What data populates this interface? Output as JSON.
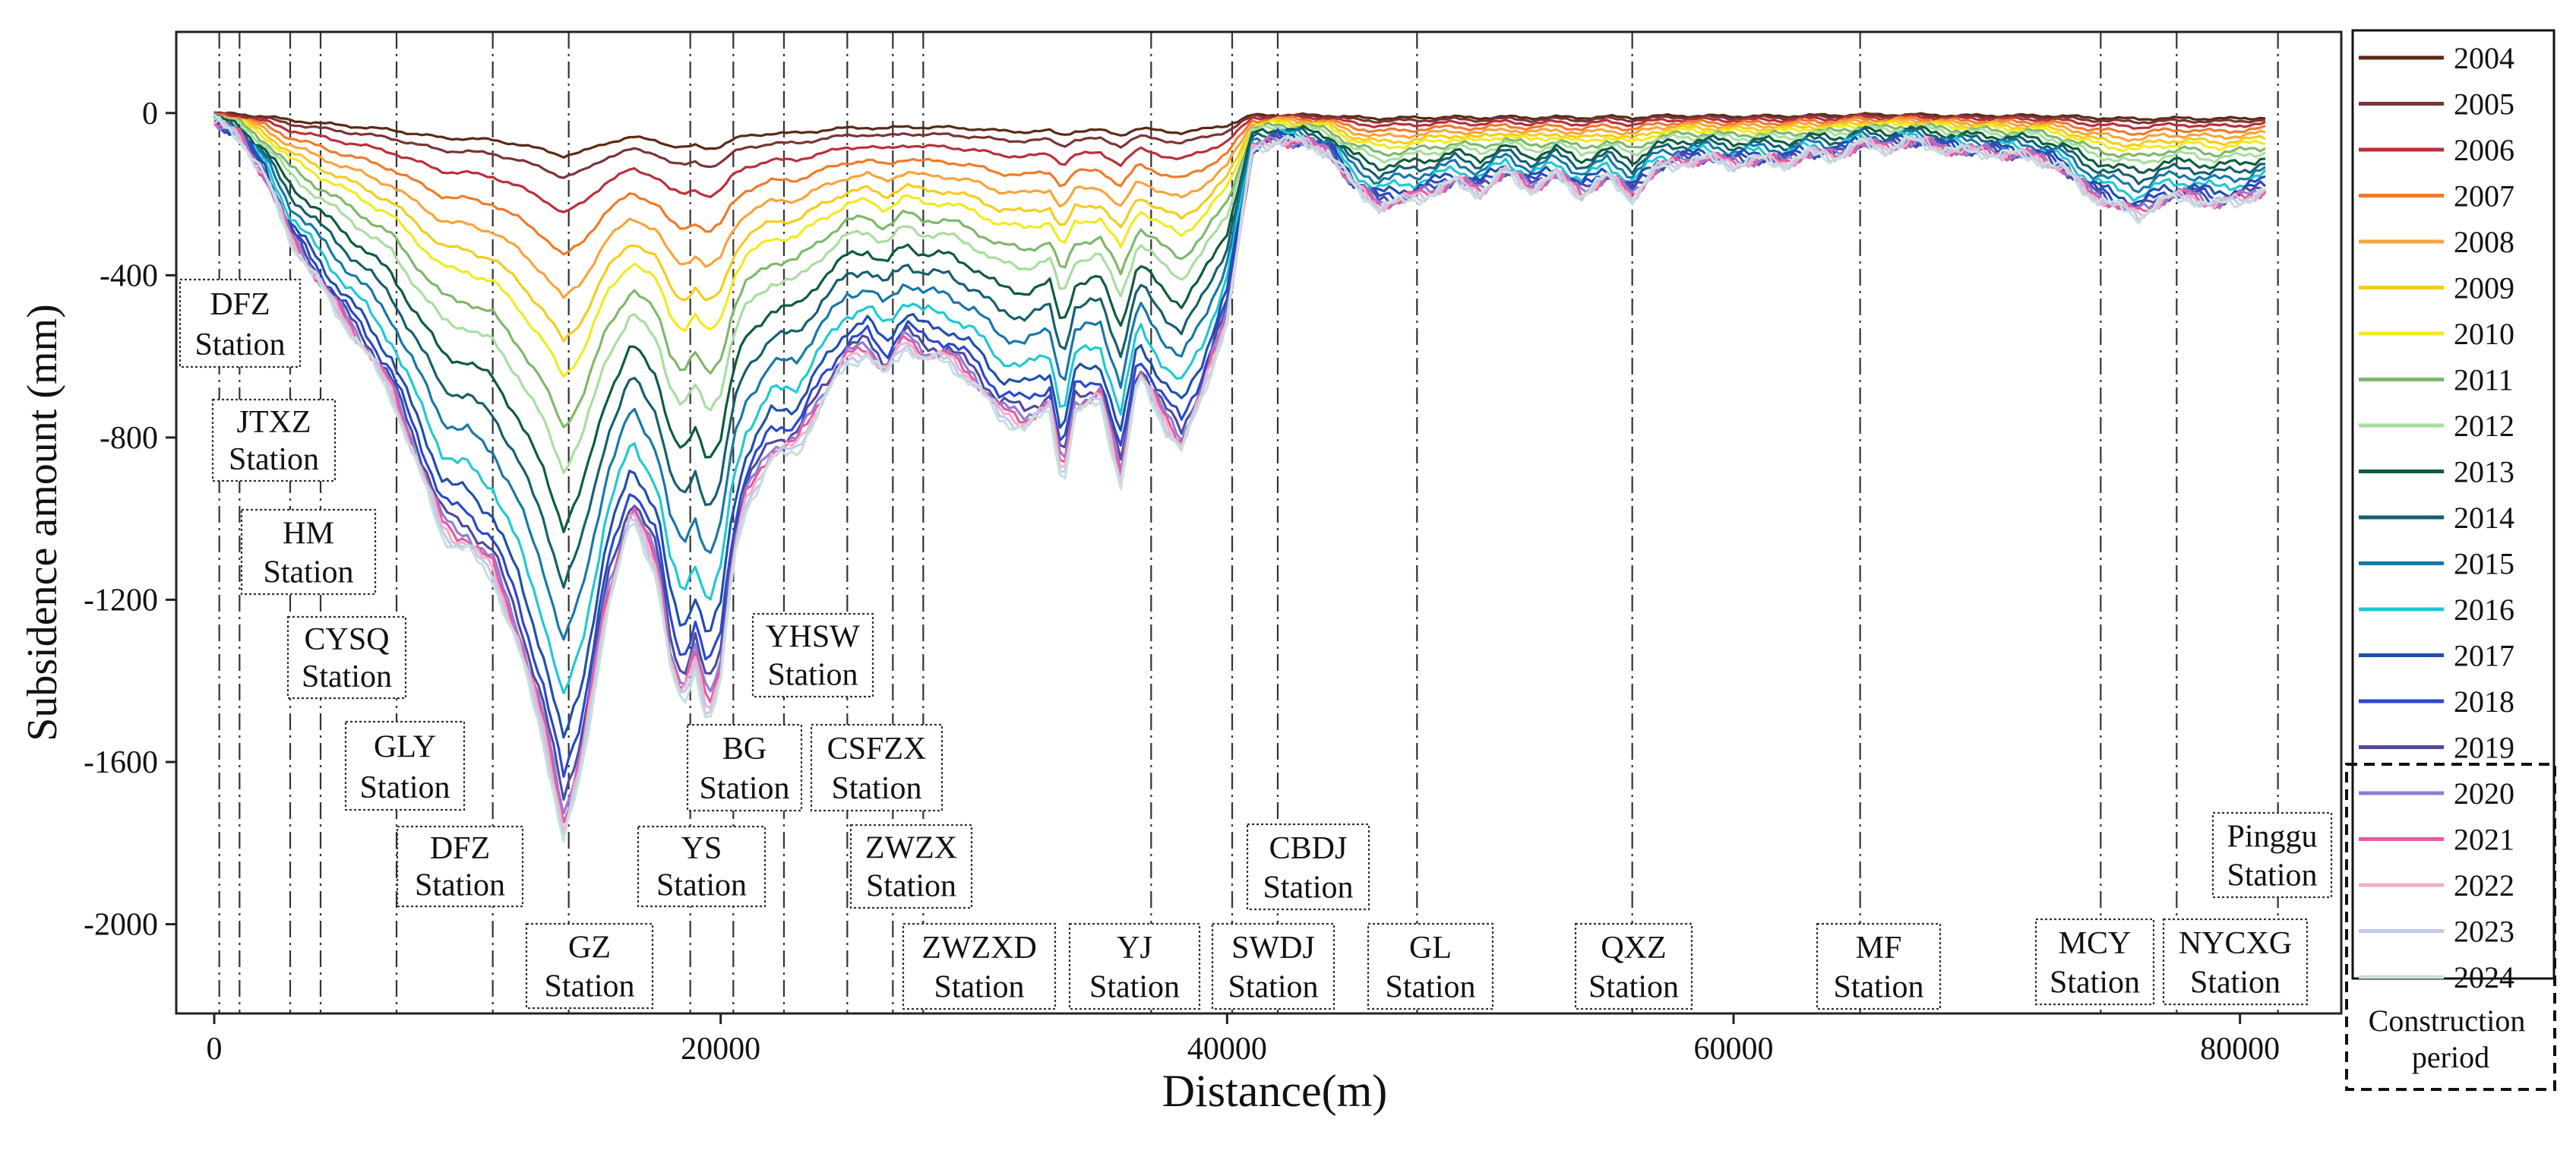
{
  "chart_data": {
    "type": "line",
    "xlabel": "Distance(m)",
    "ylabel": "Subsidence amount (mm)",
    "xlim": [
      -1500,
      84000
    ],
    "ylim": [
      -2220,
      200
    ],
    "xticks": [
      0,
      20000,
      40000,
      60000,
      80000
    ],
    "xtick_labels": [
      "0",
      "20000",
      "40000",
      "60000",
      "80000"
    ],
    "yticks": [
      0,
      -400,
      -800,
      -1200,
      -1600,
      -2000
    ],
    "ytick_labels": [
      "0",
      "-400",
      "-800",
      "-1200",
      "-1600",
      "-2000"
    ],
    "legend_position": "right",
    "legend_group_label": "Construction period",
    "profile": {
      "x": [
        0,
        1000,
        2000,
        3000,
        4500,
        6000,
        7000,
        8000,
        9000,
        9500,
        10000,
        10500,
        11000,
        12000,
        13000,
        13800,
        14500,
        15500,
        16500,
        17500,
        18000,
        18500,
        19000,
        19500,
        20000,
        20500,
        21000,
        22000,
        23000,
        24000,
        25000,
        25800,
        26500,
        27300,
        28000,
        29000,
        30000,
        31000,
        32000,
        33000,
        33500,
        34000,
        35000,
        35800,
        36500,
        37500,
        38200,
        39000,
        40000,
        41000,
        42000,
        43000,
        44000,
        45000,
        46000,
        47000,
        48000,
        49000,
        50000,
        51000,
        52000,
        53000,
        54000,
        55000,
        56000,
        57000,
        58000,
        59000,
        60000,
        61000,
        62000,
        63000,
        64000,
        65000,
        66000,
        67000,
        68000,
        69000,
        70000,
        71000,
        72000,
        73000,
        74000,
        75000,
        76000,
        77000,
        78000,
        79000,
        80000,
        81000
      ],
      "y": [
        -20,
        -60,
        -160,
        -310,
        -450,
        -580,
        -680,
        -850,
        -1020,
        -1050,
        -1060,
        -1100,
        -1130,
        -1300,
        -1520,
        -1760,
        -1600,
        -1200,
        -980,
        -1120,
        -1340,
        -1450,
        -1350,
        -1480,
        -1380,
        -1100,
        -960,
        -840,
        -820,
        -700,
        -600,
        -580,
        -640,
        -560,
        -600,
        -610,
        -660,
        -740,
        -760,
        -720,
        -900,
        -720,
        -700,
        -900,
        -640,
        -760,
        -820,
        -700,
        -500,
        -90,
        -60,
        -70,
        -90,
        -180,
        -230,
        -220,
        -200,
        -170,
        -190,
        -140,
        -180,
        -150,
        -200,
        -160,
        -210,
        -140,
        -120,
        -110,
        -120,
        -110,
        -120,
        -100,
        -110,
        -80,
        -90,
        -70,
        -80,
        -90,
        -90,
        -100,
        -110,
        -140,
        -200,
        -230,
        -250,
        -210,
        -200,
        -220,
        -210,
        -190
      ]
    },
    "series": [
      {
        "name": "2004",
        "color": "#5a2a14",
        "scale": 0.06
      },
      {
        "name": "2005",
        "color": "#7a3438",
        "scale": 0.09
      },
      {
        "name": "2006",
        "color": "#b8303c",
        "scale": 0.14
      },
      {
        "name": "2007",
        "color": "#f07a2a",
        "scale": 0.2
      },
      {
        "name": "2008",
        "color": "#f7a43c",
        "scale": 0.26
      },
      {
        "name": "2009",
        "color": "#f5cc1e",
        "scale": 0.32
      },
      {
        "name": "2010",
        "color": "#f2ea1f",
        "scale": 0.37
      },
      {
        "name": "2011",
        "color": "#7fb86a",
        "scale": 0.44
      },
      {
        "name": "2012",
        "color": "#a8dea0",
        "scale": 0.5
      },
      {
        "name": "2013",
        "color": "#0d5c3c",
        "scale": 0.58
      },
      {
        "name": "2014",
        "color": "#155f6e",
        "scale": 0.66
      },
      {
        "name": "2015",
        "color": "#1778a8",
        "scale": 0.74
      },
      {
        "name": "2016",
        "color": "#1ec9d4",
        "scale": 0.82
      },
      {
        "name": "2017",
        "color": "#1f4fa8",
        "scale": 0.88
      },
      {
        "name": "2018",
        "color": "#2a47d0",
        "scale": 0.93
      },
      {
        "name": "2019",
        "color": "#4d4b9e",
        "scale": 0.96
      },
      {
        "name": "2020",
        "color": "#8c7fd9",
        "scale": 0.98
      },
      {
        "name": "2021",
        "color": "#e85aa0",
        "scale": 0.99
      },
      {
        "name": "2022",
        "color": "#f0b0cc",
        "scale": 1.0
      },
      {
        "name": "2023",
        "color": "#c4c8ec",
        "scale": 1.01
      },
      {
        "name": "2024",
        "color": "#c8e0dc",
        "scale": 1.02
      }
    ],
    "station_lines_x": [
      200,
      1000,
      3000,
      4200,
      7200,
      11000,
      14000,
      18800,
      20500,
      22500,
      25000,
      26800,
      28000,
      37000,
      40200,
      42000,
      47500,
      56000,
      65000,
      74500,
      77500,
      81500
    ],
    "stations": [
      {
        "line1": "DFZ",
        "line2": "Station"
      },
      {
        "line1": "JTXZ",
        "line2": "Station"
      },
      {
        "line1": "HM",
        "line2": "Station"
      },
      {
        "line1": "CYSQ",
        "line2": "Station"
      },
      {
        "line1": "GLY",
        "line2": "Station"
      },
      {
        "line1": "DFZ",
        "line2": "Station"
      },
      {
        "line1": "GZ",
        "line2": "Station"
      },
      {
        "line1": "YS",
        "line2": "Station"
      },
      {
        "line1": "BG",
        "line2": "Station"
      },
      {
        "line1": "YHSW",
        "line2": "Station"
      },
      {
        "line1": "CSFZX",
        "line2": "Station"
      },
      {
        "line1": "ZWZX",
        "line2": "Station"
      },
      {
        "line1": "ZWZXD",
        "line2": "Station"
      },
      {
        "line1": "YJ",
        "line2": "Station"
      },
      {
        "line1": "SWDJ",
        "line2": "Station"
      },
      {
        "line1": "CBDJ",
        "line2": "Station"
      },
      {
        "line1": "GL",
        "line2": "Station"
      },
      {
        "line1": "QXZ",
        "line2": "Station"
      },
      {
        "line1": "MF",
        "line2": "Station"
      },
      {
        "line1": "MCY",
        "line2": "Station"
      },
      {
        "line1": "NYCXG",
        "line2": "Station"
      },
      {
        "line1": "Pinggu",
        "line2": "Station"
      }
    ]
  }
}
